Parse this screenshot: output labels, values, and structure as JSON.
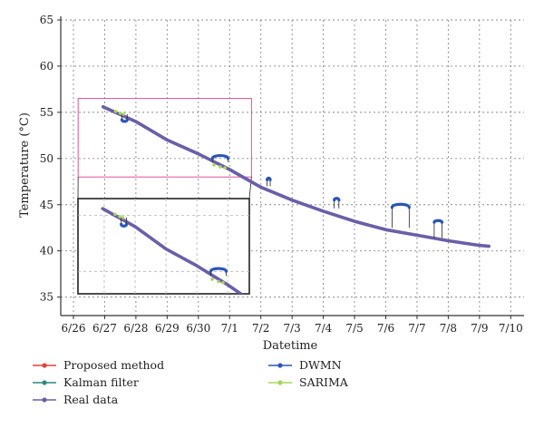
{
  "chart_data": {
    "type": "line",
    "xlabel": "Datetime",
    "ylabel": "Temperature (°C)",
    "x_ticks": [
      "6/26",
      "6/27",
      "6/28",
      "6/29",
      "6/30",
      "7/1",
      "7/2",
      "7/3",
      "7/4",
      "7/5",
      "7/6",
      "7/7",
      "7/8",
      "7/9",
      "7/10"
    ],
    "xlim": [
      0,
      14
    ],
    "ylim": [
      33,
      65
    ],
    "y_ticks": [
      35,
      40,
      45,
      50,
      55,
      60,
      65
    ],
    "grid": true,
    "legend_position": "bottom",
    "series": [
      {
        "name": "Proposed method",
        "color": "#e8413a",
        "marker": "circle",
        "points": [
          [
            0.95,
            55.6
          ],
          [
            2,
            54.0
          ],
          [
            3,
            52.0
          ],
          [
            4,
            50.5
          ],
          [
            5,
            48.8
          ],
          [
            6,
            46.9
          ],
          [
            7,
            45.5
          ],
          [
            8,
            44.3
          ],
          [
            9,
            43.2
          ],
          [
            10,
            42.3
          ],
          [
            11,
            41.7
          ],
          [
            12,
            41.1
          ],
          [
            13,
            40.6
          ],
          [
            13.3,
            40.5
          ]
        ]
      },
      {
        "name": "Kalman filter",
        "color": "#2e8b7a",
        "marker": "circle",
        "points": [
          [
            0.95,
            55.6
          ],
          [
            2,
            54.0
          ],
          [
            3,
            52.0
          ],
          [
            4,
            50.5
          ],
          [
            5,
            48.8
          ],
          [
            6,
            46.9
          ],
          [
            7,
            45.5
          ],
          [
            8,
            44.3
          ],
          [
            9,
            43.2
          ],
          [
            10,
            42.3
          ],
          [
            11,
            41.7
          ],
          [
            12,
            41.1
          ],
          [
            13,
            40.6
          ],
          [
            13.3,
            40.5
          ]
        ]
      },
      {
        "name": "Real data",
        "color": "#6b5ea8",
        "marker": "circle",
        "points": [
          [
            0.95,
            55.6
          ],
          [
            2,
            54.0
          ],
          [
            3,
            52.0
          ],
          [
            4,
            50.5
          ],
          [
            5,
            48.8
          ],
          [
            6,
            46.9
          ],
          [
            7,
            45.5
          ],
          [
            8,
            44.3
          ],
          [
            9,
            43.2
          ],
          [
            10,
            42.3
          ],
          [
            11,
            41.7
          ],
          [
            12,
            41.1
          ],
          [
            13,
            40.6
          ],
          [
            13.3,
            40.5
          ]
        ]
      },
      {
        "name": "DWMN",
        "color": "#2b55b5",
        "marker": "circle",
        "arcs": [
          {
            "x_start": 1.55,
            "x_end": 1.72,
            "y_base": 54.8,
            "y_top": 54.2
          },
          {
            "x_start": 4.45,
            "x_end": 4.95,
            "y_base": 49.6,
            "y_top": 50.0
          },
          {
            "x_start": 6.2,
            "x_end": 6.3,
            "y_base": 47.0,
            "y_top": 47.7
          },
          {
            "x_start": 8.35,
            "x_end": 8.5,
            "y_base": 44.6,
            "y_top": 45.5
          },
          {
            "x_start": 10.2,
            "x_end": 10.75,
            "y_base": 42.5,
            "y_top": 44.7
          },
          {
            "x_start": 11.55,
            "x_end": 11.8,
            "y_base": 41.4,
            "y_top": 43.1
          }
        ]
      },
      {
        "name": "SARIMA",
        "color": "#a6d65c",
        "marker": "circle",
        "points": [
          [
            1.35,
            55.1
          ],
          [
            1.5,
            54.9
          ],
          [
            1.6,
            54.8
          ],
          [
            4.5,
            49.3
          ],
          [
            4.7,
            49.1
          ],
          [
            4.85,
            49.0
          ]
        ]
      }
    ],
    "zoom_region": {
      "x_start": 0.15,
      "x_end": 5.7,
      "y_start": 48.0,
      "y_end": 56.5
    }
  },
  "colors": {
    "zoom_box": "#e0509a",
    "inset_frame": "#222222",
    "axis": "#333333"
  }
}
